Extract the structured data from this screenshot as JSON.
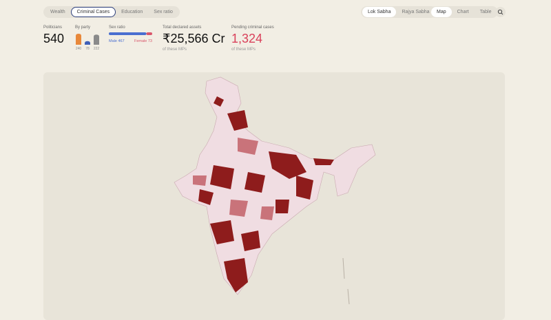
{
  "nav": {
    "topic_tabs": [
      "Wealth",
      "Criminal Cases",
      "Education",
      "Sex ratio"
    ],
    "topic_selected": 1,
    "house_tabs": [
      "Lok Sabha",
      "Rajya Sabha"
    ],
    "house_selected": 0,
    "view_tabs": [
      "Map",
      "Chart",
      "Table"
    ],
    "view_selected": 0
  },
  "stats": {
    "politicians": {
      "label": "Politicians",
      "value": "540"
    },
    "by_party": {
      "label": "By party",
      "bars": [
        {
          "value": 240,
          "color": "#e8883a"
        },
        {
          "value": 78,
          "color": "#3f5fb8"
        },
        {
          "value": 222,
          "color": "#8a8a8a"
        }
      ]
    },
    "sex_ratio": {
      "label": "Sex ratio",
      "male_label": "Male",
      "male": 467,
      "male_color": "#4a6fd0",
      "female_label": "Female",
      "female": 73,
      "female_color": "#d9566b"
    },
    "assets": {
      "label": "Total declared assets",
      "value": "₹25,566 Cr",
      "note": "of these MPs"
    },
    "criminal": {
      "label": "Pending criminal cases",
      "value": "1,324",
      "note": "of these MPs"
    }
  }
}
